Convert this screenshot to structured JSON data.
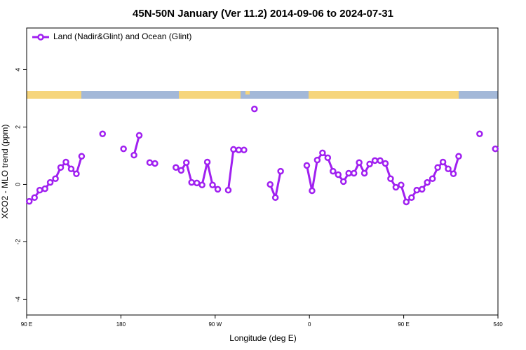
{
  "chart_data": {
    "type": "line",
    "title": "45N-50N January (Ver 11.2)   2014-09-06 to 2024-07-31",
    "x_label": "Longitude (deg E)",
    "y_label": "XCO2 - MLO trend (ppm)",
    "xlim": [
      90,
      540
    ],
    "xticks": [
      {
        "value": 90,
        "label": "90 E"
      },
      180,
      {
        "value": 270,
        "label": "90 W"
      },
      {
        "value": 360,
        "label": "0"
      },
      {
        "value": 450,
        "label": "90 E"
      },
      540
    ],
    "ylim": [
      -4.55,
      5.45
    ],
    "yticks": [
      -4,
      -2,
      0,
      2,
      4
    ],
    "legend": "top-left",
    "x": [
      92.5,
      97.5,
      102.5,
      107.5,
      112.5,
      117.5,
      122.5,
      127.5,
      132.5,
      137.5,
      142.5,
      147.5,
      162.5,
      167.5,
      182.5,
      187.5,
      192.5,
      197.5,
      202.5,
      207.5,
      212.5,
      217.5,
      232.5,
      237.5,
      242.5,
      247.5,
      252.5,
      257.5,
      262.5,
      267.5,
      272.5,
      277.5,
      282.5,
      287.5,
      292.5,
      297.5,
      302.5,
      307.5,
      312.5,
      322.5,
      327.5,
      332.5,
      337.5,
      357.5,
      362.5,
      367.5,
      372.5,
      377.5,
      382.5,
      387.5,
      392.5,
      397.5,
      402.5,
      407.5,
      412.5,
      417.5,
      422.5,
      427.5,
      432.5,
      437.5,
      442.5,
      447.5,
      452.5,
      457.5,
      462.5,
      467.5,
      472.5,
      477.5,
      482.5,
      487.5,
      492.5,
      497.5,
      502.5,
      507.5,
      522.5,
      527.5,
      537.5
    ],
    "series": [
      {
        "name": "Land (Nadir&Glint) and Ocean (Glint)",
        "color": "#a020f0",
        "values": [
          -0.59,
          -0.46,
          -0.2,
          -0.15,
          0.07,
          0.2,
          0.59,
          0.78,
          0.54,
          0.37,
          0.98,
          null,
          1.76,
          null,
          1.24,
          null,
          1.02,
          1.71,
          null,
          0.76,
          0.73,
          null,
          0.59,
          0.49,
          0.76,
          0.07,
          0.05,
          -0.02,
          0.78,
          -0.02,
          -0.17,
          null,
          -0.2,
          1.22,
          1.2,
          1.2,
          null,
          2.63,
          null,
          0.0,
          -0.46,
          0.46,
          null,
          0.66,
          -0.22,
          0.85,
          1.1,
          0.93,
          0.46,
          0.34,
          0.1,
          0.39,
          0.39,
          0.76,
          0.39,
          0.71,
          0.83,
          0.83,
          0.73,
          0.2,
          -0.1,
          -0.02,
          -0.61,
          -0.46,
          -0.2,
          -0.17,
          0.07,
          0.2,
          0.59,
          0.78,
          0.54,
          0.37,
          0.98,
          null,
          1.76,
          null,
          1.24
        ]
      }
    ]
  }
}
